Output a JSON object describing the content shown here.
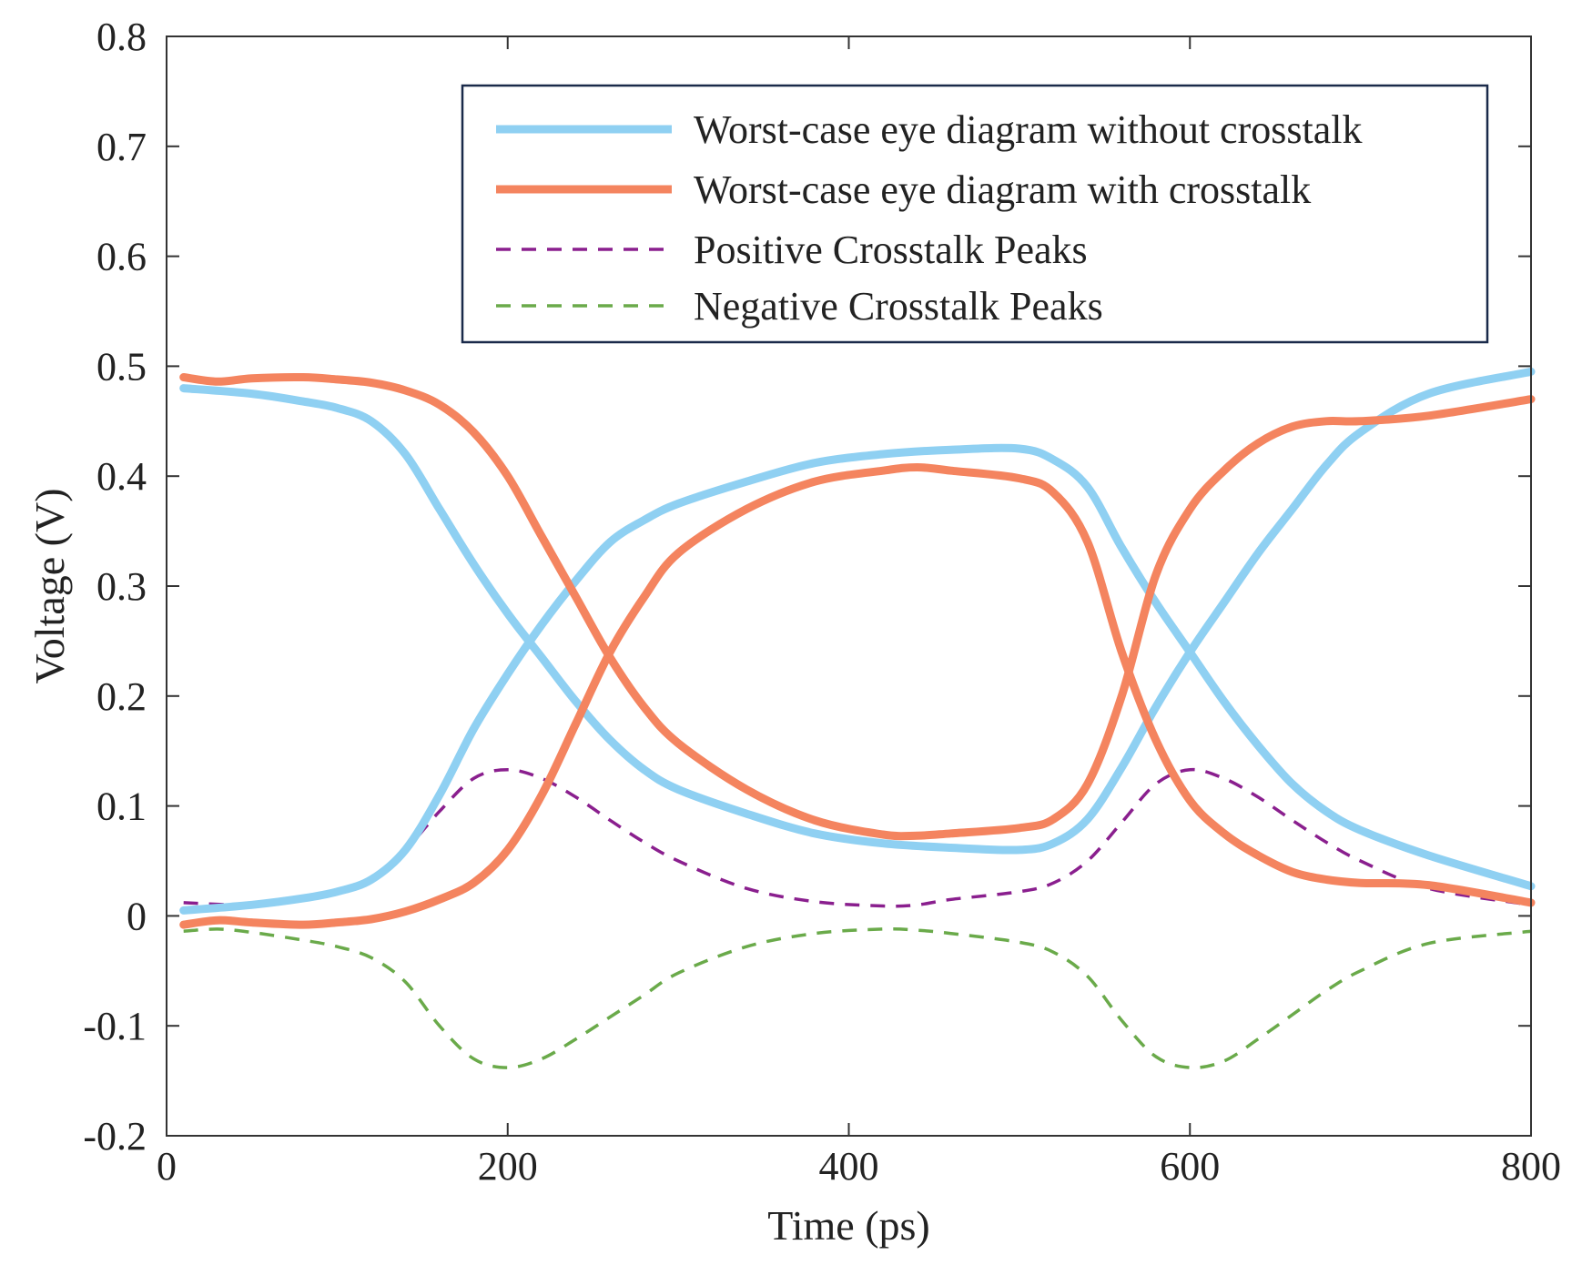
{
  "chart_data": {
    "type": "line",
    "title": "",
    "xlabel": "Time (ps)",
    "ylabel": "Voltage (V)",
    "xlim": [
      0,
      800
    ],
    "ylim": [
      -0.2,
      0.8
    ],
    "xticks": [
      0,
      200,
      400,
      600,
      800
    ],
    "xtick_labels": [
      "0",
      "200",
      "400",
      "600",
      "800"
    ],
    "yticks": [
      -0.2,
      -0.1,
      0,
      0.1,
      0.2,
      0.3,
      0.4,
      0.5,
      0.6,
      0.7,
      0.8
    ],
    "ytick_labels": [
      "-0.2",
      "-0.1",
      "0",
      "0.1",
      "0.2",
      "0.3",
      "0.4",
      "0.5",
      "0.6",
      "0.7",
      "0.8"
    ],
    "grid": false,
    "legend_position": "top-right",
    "series": [
      {
        "name": "Worst-case eye diagram without crosstalk (falling)",
        "legend_label": "Worst-case eye diagram without crosstalk",
        "color": "#8fd0f2",
        "style": "solid",
        "x": [
          10,
          50,
          80,
          100,
          120,
          140,
          160,
          180,
          200,
          220,
          240,
          260,
          280,
          300,
          340,
          380,
          420,
          460,
          500,
          520,
          540,
          560,
          580,
          600,
          620,
          640,
          660,
          680,
          700,
          740,
          800
        ],
        "y": [
          0.48,
          0.475,
          0.468,
          0.462,
          0.45,
          0.42,
          0.37,
          0.32,
          0.275,
          0.235,
          0.195,
          0.16,
          0.133,
          0.115,
          0.093,
          0.075,
          0.066,
          0.062,
          0.06,
          0.066,
          0.088,
          0.135,
          0.19,
          0.24,
          0.285,
          0.33,
          0.37,
          0.41,
          0.44,
          0.475,
          0.495
        ]
      },
      {
        "name": "Worst-case eye diagram without crosstalk (rising)",
        "color": "#8fd0f2",
        "style": "solid",
        "x": [
          10,
          50,
          80,
          100,
          120,
          140,
          160,
          180,
          200,
          220,
          240,
          260,
          280,
          300,
          340,
          380,
          420,
          460,
          500,
          520,
          540,
          560,
          580,
          600,
          620,
          640,
          660,
          680,
          700,
          740,
          800
        ],
        "y": [
          0.005,
          0.01,
          0.016,
          0.022,
          0.033,
          0.06,
          0.11,
          0.17,
          0.22,
          0.265,
          0.305,
          0.34,
          0.36,
          0.375,
          0.395,
          0.412,
          0.42,
          0.424,
          0.425,
          0.415,
          0.39,
          0.335,
          0.285,
          0.24,
          0.195,
          0.155,
          0.12,
          0.095,
          0.078,
          0.055,
          0.027
        ]
      },
      {
        "name": "Worst-case eye diagram with crosstalk (falling)",
        "legend_label": "Worst-case eye diagram with crosstalk",
        "color": "#f4845f",
        "style": "solid",
        "x": [
          10,
          30,
          50,
          80,
          100,
          120,
          140,
          160,
          180,
          200,
          220,
          240,
          260,
          280,
          300,
          340,
          380,
          420,
          440,
          460,
          500,
          520,
          540,
          560,
          580,
          600,
          620,
          640,
          660,
          680,
          700,
          740,
          800
        ],
        "y": [
          0.49,
          0.486,
          0.489,
          0.49,
          0.488,
          0.485,
          0.478,
          0.465,
          0.44,
          0.4,
          0.345,
          0.29,
          0.235,
          0.19,
          0.157,
          0.115,
          0.087,
          0.074,
          0.073,
          0.075,
          0.08,
          0.088,
          0.12,
          0.2,
          0.31,
          0.37,
          0.405,
          0.43,
          0.445,
          0.45,
          0.45,
          0.455,
          0.47
        ]
      },
      {
        "name": "Worst-case eye diagram with crosstalk (rising)",
        "color": "#f4845f",
        "style": "solid",
        "x": [
          10,
          30,
          50,
          80,
          100,
          120,
          140,
          160,
          180,
          200,
          220,
          240,
          260,
          280,
          300,
          340,
          380,
          420,
          440,
          460,
          500,
          520,
          540,
          560,
          580,
          600,
          620,
          640,
          660,
          680,
          700,
          740,
          800
        ],
        "y": [
          -0.008,
          -0.004,
          -0.006,
          -0.008,
          -0.006,
          -0.003,
          0.004,
          0.015,
          0.03,
          0.06,
          0.11,
          0.175,
          0.24,
          0.29,
          0.33,
          0.37,
          0.395,
          0.405,
          0.408,
          0.405,
          0.398,
          0.385,
          0.34,
          0.24,
          0.16,
          0.105,
          0.075,
          0.055,
          0.04,
          0.033,
          0.03,
          0.028,
          0.012
        ]
      },
      {
        "name": "Positive Crosstalk Peaks",
        "legend_label": "Positive Crosstalk Peaks",
        "color": "#8a1f8e",
        "style": "dashed",
        "x": [
          10,
          50,
          80,
          100,
          120,
          140,
          160,
          180,
          200,
          220,
          240,
          260,
          280,
          300,
          340,
          380,
          420,
          440,
          460,
          500,
          520,
          540,
          560,
          580,
          600,
          620,
          640,
          660,
          680,
          700,
          740,
          800
        ],
        "y": [
          0.012,
          0.01,
          0.015,
          0.022,
          0.035,
          0.06,
          0.095,
          0.125,
          0.133,
          0.125,
          0.108,
          0.087,
          0.067,
          0.05,
          0.025,
          0.013,
          0.009,
          0.01,
          0.015,
          0.022,
          0.03,
          0.05,
          0.085,
          0.12,
          0.133,
          0.125,
          0.108,
          0.087,
          0.067,
          0.05,
          0.025,
          0.01
        ]
      },
      {
        "name": "Negative Crosstalk Peaks",
        "legend_label": "Negative Crosstalk Peaks",
        "color": "#6aaa4a",
        "style": "dashed",
        "x": [
          10,
          30,
          50,
          80,
          100,
          120,
          140,
          160,
          180,
          200,
          220,
          240,
          260,
          280,
          300,
          340,
          380,
          420,
          440,
          460,
          500,
          520,
          540,
          560,
          580,
          600,
          620,
          640,
          660,
          680,
          700,
          740,
          800
        ],
        "y": [
          -0.014,
          -0.012,
          -0.015,
          -0.022,
          -0.028,
          -0.038,
          -0.06,
          -0.1,
          -0.13,
          -0.138,
          -0.13,
          -0.112,
          -0.092,
          -0.072,
          -0.052,
          -0.028,
          -0.016,
          -0.012,
          -0.013,
          -0.016,
          -0.024,
          -0.033,
          -0.055,
          -0.095,
          -0.128,
          -0.138,
          -0.132,
          -0.112,
          -0.09,
          -0.068,
          -0.05,
          -0.025,
          -0.014
        ]
      }
    ],
    "legend": [
      {
        "label": "Worst-case eye diagram without crosstalk",
        "color": "#8fd0f2",
        "style": "solid"
      },
      {
        "label": "Worst-case eye diagram with crosstalk",
        "color": "#f4845f",
        "style": "solid"
      },
      {
        "label": "Positive Crosstalk Peaks",
        "color": "#8a1f8e",
        "style": "dashed"
      },
      {
        "label": "Negative Crosstalk Peaks",
        "color": "#6aaa4a",
        "style": "dashed"
      }
    ]
  }
}
